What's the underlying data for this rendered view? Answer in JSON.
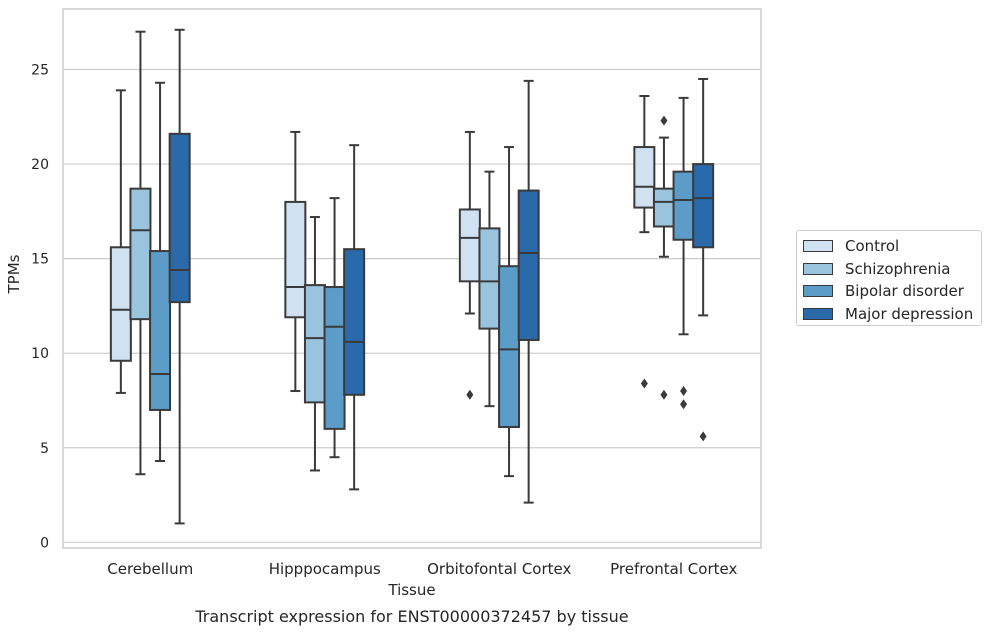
{
  "chart_data": {
    "type": "box",
    "title": "Transcript expression for ENST00000372457 by tissue",
    "xlabel": "Tissue",
    "ylabel": "TPMs",
    "ylim": [
      -0.3,
      28.2
    ],
    "yticks": [
      0,
      5,
      10,
      15,
      20,
      25
    ],
    "categories": [
      "Cerebellum",
      "Hipppocampus",
      "Orbitofontal Cortex",
      "Prefrontal Cortex"
    ],
    "grid": "horizontal",
    "legend_position": "right",
    "series": [
      {
        "name": "Control",
        "color": "#d0e1f2",
        "boxes": [
          {
            "whisker_low": 7.9,
            "q1": 9.6,
            "median": 12.3,
            "q3": 15.6,
            "whisker_high": 23.9,
            "outliers": []
          },
          {
            "whisker_low": 8.0,
            "q1": 11.9,
            "median": 13.5,
            "q3": 18.0,
            "whisker_high": 21.7,
            "outliers": []
          },
          {
            "whisker_low": 12.1,
            "q1": 13.8,
            "median": 16.1,
            "q3": 17.6,
            "whisker_high": 21.7,
            "outliers": [
              7.8
            ]
          },
          {
            "whisker_low": 16.4,
            "q1": 17.7,
            "median": 18.8,
            "q3": 20.9,
            "whisker_high": 23.6,
            "outliers": [
              8.4
            ]
          }
        ]
      },
      {
        "name": "Schizophrenia",
        "color": "#9ac3de",
        "boxes": [
          {
            "whisker_low": 3.6,
            "q1": 11.8,
            "median": 16.5,
            "q3": 18.7,
            "whisker_high": 27.0,
            "outliers": []
          },
          {
            "whisker_low": 3.8,
            "q1": 7.4,
            "median": 10.8,
            "q3": 13.6,
            "whisker_high": 17.2,
            "outliers": []
          },
          {
            "whisker_low": 7.2,
            "q1": 11.3,
            "median": 13.8,
            "q3": 16.6,
            "whisker_high": 19.6,
            "outliers": []
          },
          {
            "whisker_low": 15.1,
            "q1": 16.7,
            "median": 18.0,
            "q3": 18.7,
            "whisker_high": 21.4,
            "outliers": [
              7.8,
              22.3
            ]
          }
        ]
      },
      {
        "name": "Bipolar disorder",
        "color": "#5b9cc9",
        "boxes": [
          {
            "whisker_low": 4.3,
            "q1": 7.0,
            "median": 8.9,
            "q3": 15.4,
            "whisker_high": 24.3,
            "outliers": []
          },
          {
            "whisker_low": 4.5,
            "q1": 6.0,
            "median": 11.4,
            "q3": 13.5,
            "whisker_high": 18.2,
            "outliers": []
          },
          {
            "whisker_low": 3.5,
            "q1": 6.1,
            "median": 10.2,
            "q3": 14.6,
            "whisker_high": 20.9,
            "outliers": []
          },
          {
            "whisker_low": 11.0,
            "q1": 16.0,
            "median": 18.1,
            "q3": 19.6,
            "whisker_high": 23.5,
            "outliers": [
              8.0,
              7.3
            ]
          }
        ]
      },
      {
        "name": "Major depression",
        "color": "#2a6aaa",
        "boxes": [
          {
            "whisker_low": 1.0,
            "q1": 12.7,
            "median": 14.4,
            "q3": 21.6,
            "whisker_high": 27.1,
            "outliers": []
          },
          {
            "whisker_low": 2.8,
            "q1": 7.8,
            "median": 10.6,
            "q3": 15.5,
            "whisker_high": 21.0,
            "outliers": []
          },
          {
            "whisker_low": 2.1,
            "q1": 10.7,
            "median": 15.3,
            "q3": 18.6,
            "whisker_high": 24.4,
            "outliers": []
          },
          {
            "whisker_low": 12.0,
            "q1": 15.6,
            "median": 18.2,
            "q3": 20.0,
            "whisker_high": 24.5,
            "outliers": [
              5.6
            ]
          }
        ]
      }
    ]
  }
}
